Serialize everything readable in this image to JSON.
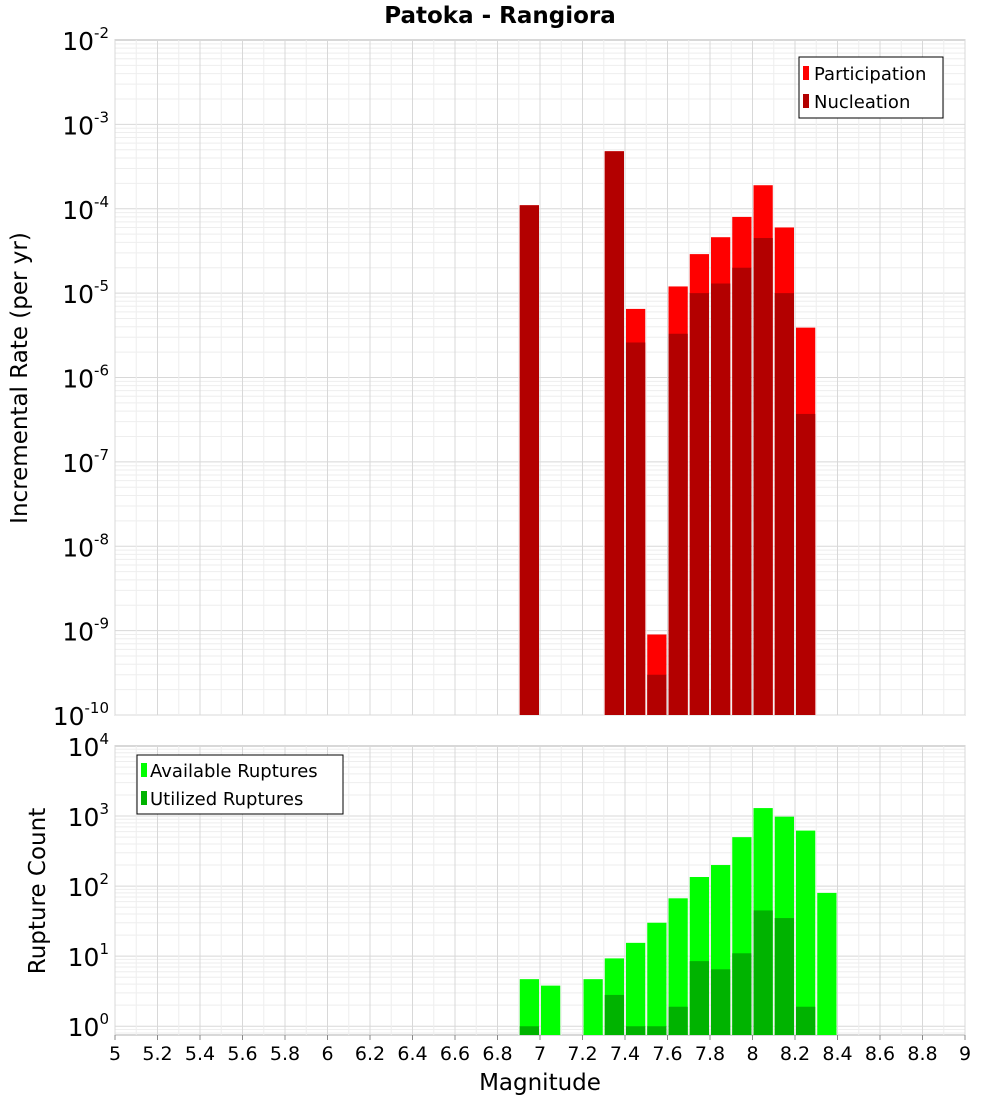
{
  "title": "Patoka - Rangiora",
  "chart_data": [
    {
      "type": "bar",
      "panel": "top",
      "ylabel": "Incremental Rate (per yr)",
      "yscale": "log",
      "ylim": [
        1e-10,
        0.01
      ],
      "y_tick_exponents": [
        "-2",
        "-3",
        "-4",
        "-5",
        "-6",
        "-7",
        "-8",
        "-9",
        "-10"
      ],
      "y_tick_base": "10",
      "xlim": [
        5,
        9
      ],
      "legend": {
        "placement": "top-right"
      },
      "grid": true,
      "series": [
        {
          "name": "Participation",
          "color": "#ff0000",
          "points": [
            {
              "x": 6.95,
              "y": 0.00011
            },
            {
              "x": 7.35,
              "y": 0.00048
            },
            {
              "x": 7.45,
              "y": 6.5e-06
            },
            {
              "x": 7.55,
              "y": 9e-10
            },
            {
              "x": 7.65,
              "y": 1.2e-05
            },
            {
              "x": 7.75,
              "y": 2.9e-05
            },
            {
              "x": 7.85,
              "y": 4.6e-05
            },
            {
              "x": 7.95,
              "y": 8e-05
            },
            {
              "x": 8.05,
              "y": 0.00019
            },
            {
              "x": 8.15,
              "y": 6e-05
            },
            {
              "x": 8.25,
              "y": 3.9e-06
            }
          ]
        },
        {
          "name": "Nucleation",
          "color": "#b30000",
          "points": [
            {
              "x": 6.95,
              "y": 0.00011
            },
            {
              "x": 7.35,
              "y": 0.00048
            },
            {
              "x": 7.45,
              "y": 2.6e-06
            },
            {
              "x": 7.55,
              "y": 3e-10
            },
            {
              "x": 7.65,
              "y": 3.3e-06
            },
            {
              "x": 7.75,
              "y": 1e-05
            },
            {
              "x": 7.85,
              "y": 1.3e-05
            },
            {
              "x": 7.95,
              "y": 2e-05
            },
            {
              "x": 8.05,
              "y": 4.5e-05
            },
            {
              "x": 8.15,
              "y": 1e-05
            },
            {
              "x": 8.25,
              "y": 3.7e-07
            }
          ]
        }
      ]
    },
    {
      "type": "bar",
      "panel": "bottom",
      "xlabel": "Magnitude",
      "ylabel": "Rupture Count",
      "yscale": "log",
      "ylim": [
        0.75,
        10000.0
      ],
      "y_tick_exponents": [
        "4",
        "3",
        "2",
        "1",
        "0"
      ],
      "y_tick_base": "10",
      "xlim": [
        5,
        9
      ],
      "x_ticks": [
        "5",
        "5.2",
        "5.4",
        "5.6",
        "5.8",
        "6",
        "6.2",
        "6.4",
        "6.6",
        "6.8",
        "7",
        "7.2",
        "7.4",
        "7.6",
        "7.8",
        "8",
        "8.2",
        "8.4",
        "8.6",
        "8.8",
        "9"
      ],
      "legend": {
        "placement": "top-left"
      },
      "grid": true,
      "series": [
        {
          "name": "Available Ruptures",
          "color": "#00ff00",
          "points": [
            {
              "x": 6.95,
              "y": 4.7
            },
            {
              "x": 7.05,
              "y": 3.8
            },
            {
              "x": 7.25,
              "y": 4.7
            },
            {
              "x": 7.35,
              "y": 9.3
            },
            {
              "x": 7.45,
              "y": 15.5
            },
            {
              "x": 7.55,
              "y": 30
            },
            {
              "x": 7.65,
              "y": 67
            },
            {
              "x": 7.75,
              "y": 135
            },
            {
              "x": 7.85,
              "y": 200
            },
            {
              "x": 7.95,
              "y": 500
            },
            {
              "x": 8.05,
              "y": 1300
            },
            {
              "x": 8.15,
              "y": 980
            },
            {
              "x": 8.25,
              "y": 620
            },
            {
              "x": 8.35,
              "y": 80
            }
          ]
        },
        {
          "name": "Utilized Ruptures",
          "color": "#00b300",
          "points": [
            {
              "x": 6.95,
              "y": 1
            },
            {
              "x": 7.35,
              "y": 2.8
            },
            {
              "x": 7.45,
              "y": 1
            },
            {
              "x": 7.55,
              "y": 1
            },
            {
              "x": 7.65,
              "y": 1.9
            },
            {
              "x": 7.75,
              "y": 8.5
            },
            {
              "x": 7.85,
              "y": 6.5
            },
            {
              "x": 7.95,
              "y": 11
            },
            {
              "x": 8.05,
              "y": 45
            },
            {
              "x": 8.15,
              "y": 35
            },
            {
              "x": 8.25,
              "y": 1.9
            }
          ]
        }
      ]
    }
  ]
}
